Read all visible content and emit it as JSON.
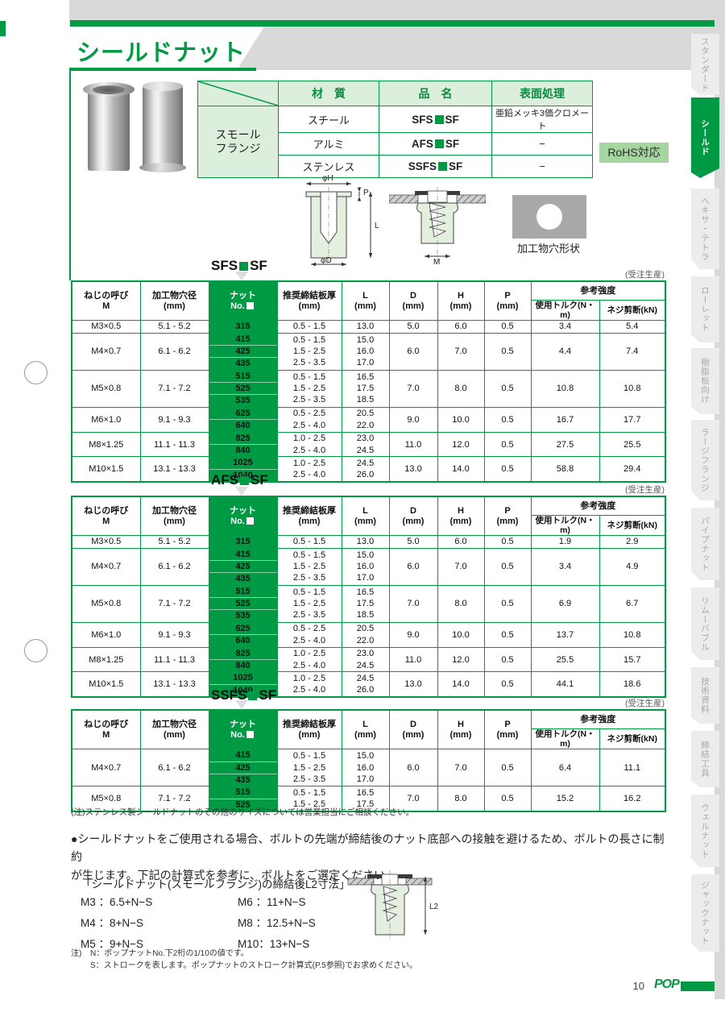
{
  "page": {
    "title": "シールドナット",
    "rohs_badge": "RoHS対応",
    "page_number": "10",
    "brand": "POP"
  },
  "colors": {
    "green": "#009944",
    "light_green": "#dcefdc",
    "badge_green": "#a5d6a0",
    "gray_bg": "#d9d9d9"
  },
  "material_table": {
    "row_group_label": "スモール\nフランジ",
    "headers": {
      "material": "材　質",
      "name": "品　名",
      "surface": "表面処理"
    },
    "rows": [
      {
        "material": "スチール",
        "name_prefix": "SFS",
        "name_suffix": "SF",
        "surface": "亜鉛メッキ3価クロメート"
      },
      {
        "material": "アルミ",
        "name_prefix": "AFS",
        "name_suffix": "SF",
        "surface": "−"
      },
      {
        "material": "ステンレス",
        "name_prefix": "SSFS",
        "name_suffix": "SF",
        "surface": "−"
      }
    ]
  },
  "diagram_labels": {
    "phiH": "φH",
    "P": "P",
    "L": "L",
    "phiD": "φD",
    "M": "M",
    "hole_shape": "加工物穴形状",
    "L2": "L2"
  },
  "spec_headers": {
    "size": "ねじの呼び\nM",
    "hole": "加工物穴径\n(mm)",
    "nut_line1": "ナット",
    "nut_line2": "No.",
    "plate": "推奨締結板厚\n(mm)",
    "l": "L\n(mm)",
    "d": "D\n(mm)",
    "h": "H\n(mm)",
    "p": "P\n(mm)",
    "strength": "参考強度",
    "torque": "使用トルク(N・m)",
    "shear": "ネジ剪断(kN)"
  },
  "spec_tables": [
    {
      "title_prefix": "SFS",
      "title_suffix": "SF",
      "order_note": "(受注生産)",
      "rows": [
        {
          "size": "M3×0.5",
          "hole": "5.1 - 5.2",
          "nuts": [
            "315"
          ],
          "plate": [
            "0.5 - 1.5"
          ],
          "len": [
            "13.0"
          ],
          "d": "5.0",
          "h": "6.0",
          "p": "0.5",
          "torque": "3.4",
          "shear": "5.4"
        },
        {
          "size": "M4×0.7",
          "hole": "6.1 - 6.2",
          "nuts": [
            "415",
            "425",
            "435"
          ],
          "plate": [
            "0.5 - 1.5",
            "1.5 - 2.5",
            "2.5 - 3.5"
          ],
          "len": [
            "15.0",
            "16.0",
            "17.0"
          ],
          "d": "6.0",
          "h": "7.0",
          "p": "0.5",
          "torque": "4.4",
          "shear": "7.4"
        },
        {
          "size": "M5×0.8",
          "hole": "7.1 - 7.2",
          "nuts": [
            "515",
            "525",
            "535"
          ],
          "plate": [
            "0.5 - 1.5",
            "1.5 - 2.5",
            "2.5 - 3.5"
          ],
          "len": [
            "16.5",
            "17.5",
            "18.5"
          ],
          "d": "7.0",
          "h": "8.0",
          "p": "0.5",
          "torque": "10.8",
          "shear": "10.8"
        },
        {
          "size": "M6×1.0",
          "hole": "9.1 - 9.3",
          "nuts": [
            "625",
            "640"
          ],
          "plate": [
            "0.5 - 2.5",
            "2.5 - 4.0"
          ],
          "len": [
            "20.5",
            "22.0"
          ],
          "d": "9.0",
          "h": "10.0",
          "p": "0.5",
          "torque": "16.7",
          "shear": "17.7"
        },
        {
          "size": "M8×1.25",
          "hole": "11.1 - 11.3",
          "nuts": [
            "825",
            "840"
          ],
          "plate": [
            "1.0 - 2.5",
            "2.5 - 4.0"
          ],
          "len": [
            "23.0",
            "24.5"
          ],
          "d": "11.0",
          "h": "12.0",
          "p": "0.5",
          "torque": "27.5",
          "shear": "25.5"
        },
        {
          "size": "M10×1.5",
          "hole": "13.1 - 13.3",
          "nuts": [
            "1025",
            "1040"
          ],
          "plate": [
            "1.0 - 2.5",
            "2.5 - 4.0"
          ],
          "len": [
            "24.5",
            "26.0"
          ],
          "d": "13.0",
          "h": "14.0",
          "p": "0.5",
          "torque": "58.8",
          "shear": "29.4"
        }
      ]
    },
    {
      "title_prefix": "AFS",
      "title_suffix": "SF",
      "order_note": "(受注生産)",
      "rows": [
        {
          "size": "M3×0.5",
          "hole": "5.1 - 5.2",
          "nuts": [
            "315"
          ],
          "plate": [
            "0.5 - 1.5"
          ],
          "len": [
            "13.0"
          ],
          "d": "5.0",
          "h": "6.0",
          "p": "0.5",
          "torque": "1.9",
          "shear": "2.9"
        },
        {
          "size": "M4×0.7",
          "hole": "6.1 - 6.2",
          "nuts": [
            "415",
            "425",
            "435"
          ],
          "plate": [
            "0.5 - 1.5",
            "1.5 - 2.5",
            "2.5 - 3.5"
          ],
          "len": [
            "15.0",
            "16.0",
            "17.0"
          ],
          "d": "6.0",
          "h": "7.0",
          "p": "0.5",
          "torque": "3.4",
          "shear": "4.9"
        },
        {
          "size": "M5×0.8",
          "hole": "7.1 - 7.2",
          "nuts": [
            "515",
            "525",
            "535"
          ],
          "plate": [
            "0.5 - 1.5",
            "1.5 - 2.5",
            "2.5 - 3.5"
          ],
          "len": [
            "16.5",
            "17.5",
            "18.5"
          ],
          "d": "7.0",
          "h": "8.0",
          "p": "0.5",
          "torque": "6.9",
          "shear": "6.7"
        },
        {
          "size": "M6×1.0",
          "hole": "9.1 - 9.3",
          "nuts": [
            "625",
            "640"
          ],
          "plate": [
            "0.5 - 2.5",
            "2.5 - 4.0"
          ],
          "len": [
            "20.5",
            "22.0"
          ],
          "d": "9.0",
          "h": "10.0",
          "p": "0.5",
          "torque": "13.7",
          "shear": "10.8"
        },
        {
          "size": "M8×1.25",
          "hole": "11.1 - 11.3",
          "nuts": [
            "825",
            "840"
          ],
          "plate": [
            "1.0 - 2.5",
            "2.5 - 4.0"
          ],
          "len": [
            "23.0",
            "24.5"
          ],
          "d": "11.0",
          "h": "12.0",
          "p": "0.5",
          "torque": "25.5",
          "shear": "15.7"
        },
        {
          "size": "M10×1.5",
          "hole": "13.1 - 13.3",
          "nuts": [
            "1025",
            "1040"
          ],
          "plate": [
            "1.0 - 2.5",
            "2.5 - 4.0"
          ],
          "len": [
            "24.5",
            "26.0"
          ],
          "d": "13.0",
          "h": "14.0",
          "p": "0.5",
          "torque": "44.1",
          "shear": "18.6"
        }
      ]
    },
    {
      "title_prefix": "SSFS",
      "title_suffix": "SF",
      "order_note": "(受注生産)",
      "rows": [
        {
          "size": "M4×0.7",
          "hole": "6.1 - 6.2",
          "nuts": [
            "415",
            "425",
            "435"
          ],
          "plate": [
            "0.5 - 1.5",
            "1.5 - 2.5",
            "2.5 - 3.5"
          ],
          "len": [
            "15.0",
            "16.0",
            "17.0"
          ],
          "d": "6.0",
          "h": "7.0",
          "p": "0.5",
          "torque": "6.4",
          "shear": "11.1"
        },
        {
          "size": "M5×0.8",
          "hole": "7.1 - 7.2",
          "nuts": [
            "515",
            "525"
          ],
          "plate": [
            "0.5 - 1.5",
            "1.5 - 2.5"
          ],
          "len": [
            "16.5",
            "17.5"
          ],
          "d": "7.0",
          "h": "8.0",
          "p": "0.5",
          "torque": "15.2",
          "shear": "16.2"
        }
      ]
    }
  ],
  "notes": {
    "stainless": "(注)ステンレス製シールドナットのその他のサイズについては営業担当にご相談ください。",
    "usage": "●シールドナットをご使用される場合、ボルトの先端が締結後のナット底部への接触を避けるため、ボルトの長さに制約\nが生じます。下記の計算式を参考に、ボルトをご選定ください。",
    "bottom_label": "注)",
    "bottom_line1": "N：ポップナットNo.下2桁の1/10の値です。",
    "bottom_line2": "S：ストロークを表します。ポップナットのストローク計算式(P.5参照)でお求めください。"
  },
  "l2_formula": {
    "title": "「シールドナット(スモールフランジ)の締結後L2寸法」",
    "rows": [
      [
        "M3 ：6.5+N−S",
        "M6 ：11+N−S"
      ],
      [
        "M4 ：8+N−S",
        "M8 ：12.5+N−S"
      ],
      [
        "M5 ：9+N−S",
        "M10：13+N−S"
      ]
    ]
  },
  "sidebar": {
    "tabs": [
      {
        "label": "スタンダード",
        "active": false
      },
      {
        "label": "シールド",
        "active": true
      },
      {
        "label": "ヘキサ・テトラ",
        "active": false
      },
      {
        "label": "ローレット",
        "active": false
      },
      {
        "label": "樹脂板向け",
        "active": false
      },
      {
        "label": "ラージフランジ",
        "active": false
      },
      {
        "label": "パイプナット",
        "active": false
      },
      {
        "label": "リムーバブル",
        "active": false
      },
      {
        "label": "技術資料",
        "active": false
      },
      {
        "label": "締結工具",
        "active": false
      },
      {
        "label": "ウェルナット",
        "active": false
      },
      {
        "label": "ジャックナット",
        "active": false
      }
    ]
  }
}
